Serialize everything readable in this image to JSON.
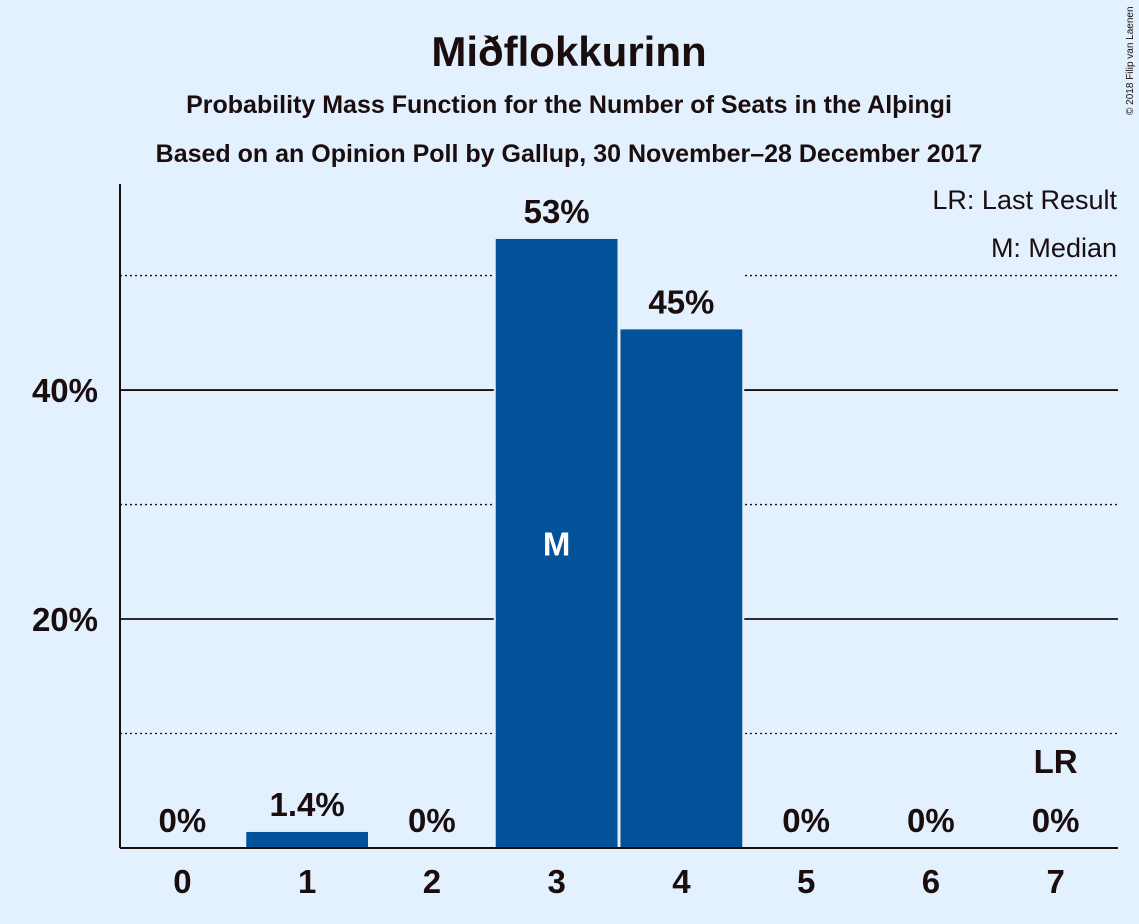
{
  "chart_data": {
    "type": "bar",
    "title": "Miðflokkurinn",
    "subtitle_1": "Probability Mass Function for the Number of Seats in the Alþingi",
    "subtitle_2": "Based on an Opinion Poll by Gallup, 30 November–28 December 2017",
    "categories": [
      "0",
      "1",
      "2",
      "3",
      "4",
      "5",
      "6",
      "7"
    ],
    "values": [
      0,
      1.4,
      0,
      53.2,
      45.3,
      0,
      0,
      0
    ],
    "value_labels": [
      "0%",
      "1.4%",
      "0%",
      "53%",
      "45%",
      "0%",
      "0%",
      "0%"
    ],
    "ylim": [
      0,
      58
    ],
    "y_ticks": [
      20,
      40
    ],
    "y_tick_labels": [
      "20%",
      "40%"
    ],
    "y_minor_gridlines": [
      10,
      30,
      50
    ],
    "grid": true,
    "median_seat": "3",
    "median_marker": "M",
    "last_result_seat": "7",
    "last_result_marker": "LR",
    "legend": [
      "LR: Last Result",
      "M: Median"
    ],
    "legend_position": "top-right",
    "bar_color": "#02529a"
  },
  "copyright": "© 2018 Filip van Laenen"
}
